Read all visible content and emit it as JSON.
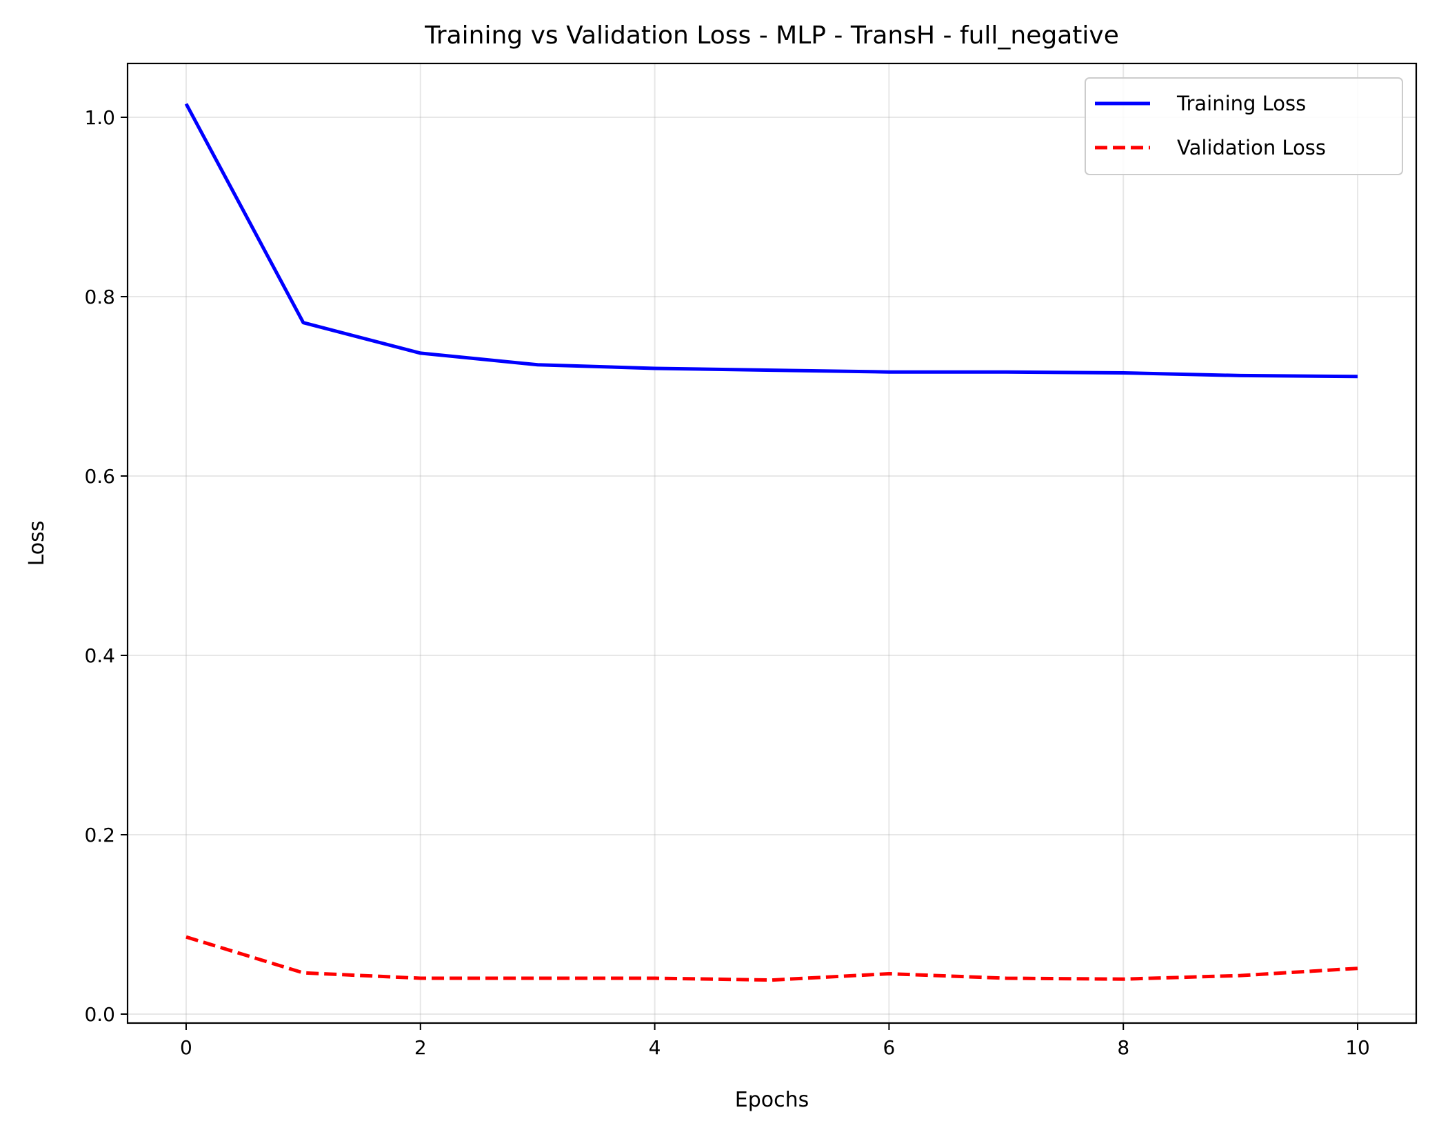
{
  "chart_data": {
    "type": "line",
    "title": "Training vs Validation Loss - MLP - TransH - full_negative",
    "xlabel": "Epochs",
    "ylabel": "Loss",
    "xlim": [
      -0.5,
      10.5
    ],
    "ylim": [
      -0.01,
      1.06
    ],
    "xticks": [
      0,
      2,
      4,
      6,
      8,
      10
    ],
    "xtick_labels": [
      "0",
      "2",
      "4",
      "6",
      "8",
      "10"
    ],
    "yticks": [
      0.0,
      0.2,
      0.4,
      0.6,
      0.8,
      1.0
    ],
    "ytick_labels": [
      "0.0",
      "0.2",
      "0.4",
      "0.6",
      "0.8",
      "1.0"
    ],
    "grid": true,
    "legend_position": "top-right",
    "x": [
      0,
      1,
      2,
      3,
      4,
      5,
      6,
      7,
      8,
      9,
      10
    ],
    "series": [
      {
        "name": "Training Loss",
        "color": "#0000ff",
        "style": "solid",
        "values": [
          1.015,
          0.771,
          0.737,
          0.724,
          0.72,
          0.718,
          0.716,
          0.716,
          0.715,
          0.712,
          0.711
        ]
      },
      {
        "name": "Validation Loss",
        "color": "#ff0000",
        "style": "dashed",
        "values": [
          0.086,
          0.046,
          0.04,
          0.04,
          0.04,
          0.038,
          0.045,
          0.04,
          0.039,
          0.043,
          0.051
        ]
      }
    ]
  }
}
